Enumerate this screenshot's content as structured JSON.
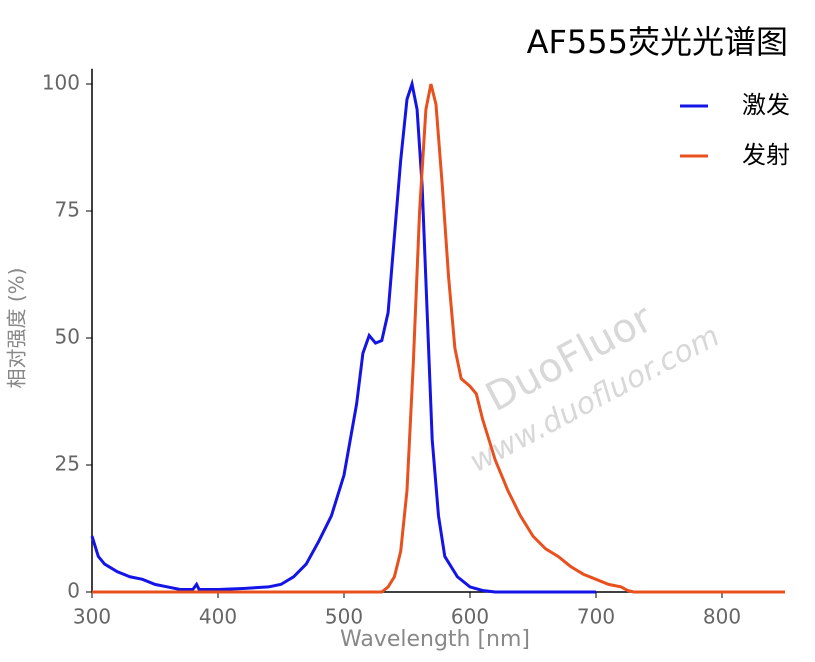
{
  "chart_data": {
    "type": "line",
    "title": "AF555荧光光谱图",
    "xlabel": "Wavelength [nm]",
    "ylabel": "相对强度 (%)",
    "watermark": [
      "DuoFluor",
      "www.duofluor.com"
    ],
    "xlim": [
      300,
      850
    ],
    "ylim": [
      0,
      103
    ],
    "xticks": [
      300,
      400,
      500,
      600,
      700,
      800
    ],
    "yticks": [
      0,
      25,
      50,
      75,
      100
    ],
    "legend": "upper right",
    "series": [
      {
        "name": "激发",
        "color": "#1414e6",
        "x": [
          300,
          305,
          310,
          320,
          330,
          340,
          350,
          360,
          370,
          380,
          383,
          385,
          400,
          420,
          440,
          450,
          460,
          470,
          480,
          490,
          500,
          510,
          515,
          520,
          525,
          530,
          535,
          540,
          545,
          550,
          554,
          558,
          562,
          566,
          570,
          575,
          580,
          590,
          600,
          610,
          620,
          700
        ],
        "values": [
          11,
          7,
          5.5,
          4,
          3,
          2.5,
          1.5,
          1,
          0.5,
          0.5,
          1.5,
          0.5,
          0.5,
          0.7,
          1,
          1.5,
          3,
          5.5,
          10,
          15,
          23,
          37,
          47,
          50.5,
          49,
          49.5,
          55,
          70,
          85,
          97,
          100,
          95,
          80,
          55,
          30,
          15,
          7,
          3,
          1,
          0.3,
          0,
          0
        ]
      },
      {
        "name": "发射",
        "color": "#e8501e",
        "x": [
          300,
          530,
          535,
          540,
          545,
          550,
          555,
          560,
          565,
          569,
          573,
          578,
          583,
          588,
          593,
          600,
          605,
          610,
          620,
          630,
          640,
          650,
          660,
          670,
          680,
          690,
          700,
          710,
          720,
          725,
          730,
          850
        ],
        "values": [
          0,
          0,
          1,
          3,
          8,
          20,
          45,
          75,
          95,
          100,
          96,
          80,
          62,
          48,
          42,
          40.5,
          39,
          34,
          26,
          20,
          15,
          11,
          8.5,
          7,
          5,
          3.5,
          2.5,
          1.5,
          1,
          0.3,
          0,
          0
        ]
      }
    ]
  }
}
